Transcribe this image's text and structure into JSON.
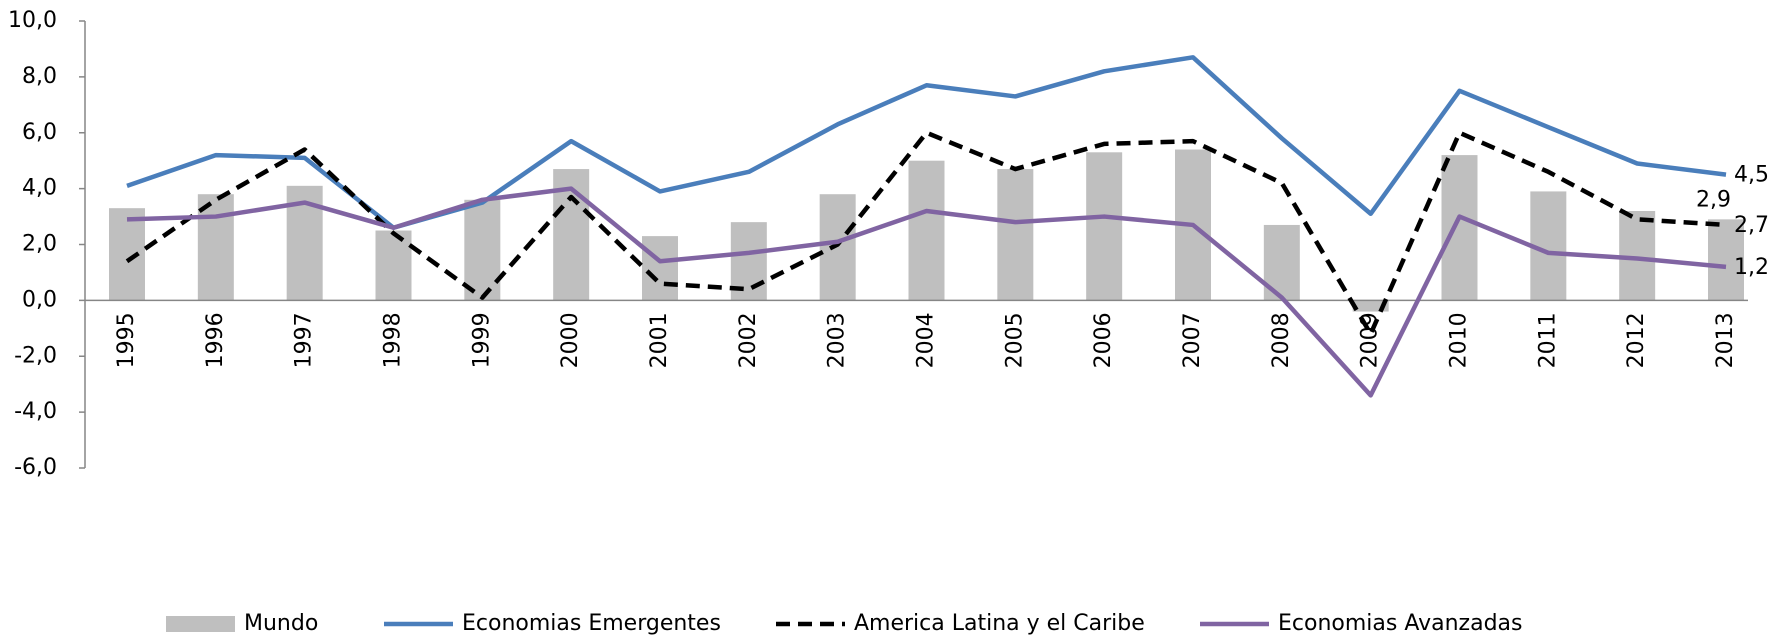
{
  "chart_data": {
    "type": "combo",
    "categories": [
      "1995",
      "1996",
      "1997",
      "1998",
      "1999",
      "2000",
      "2001",
      "2002",
      "2003",
      "2004",
      "2005",
      "2006",
      "2007",
      "2008",
      "2009",
      "2010",
      "2011",
      "2012",
      "2013"
    ],
    "series": [
      {
        "name": "Mundo",
        "type": "bar",
        "color": "#bfbfbf",
        "values": [
          3.3,
          3.8,
          4.1,
          2.5,
          3.6,
          4.7,
          2.3,
          2.8,
          3.8,
          5.0,
          4.7,
          5.3,
          5.4,
          2.7,
          -0.4,
          5.2,
          3.9,
          3.2,
          2.9
        ],
        "value_labels": [
          null,
          null,
          null,
          null,
          null,
          null,
          null,
          null,
          null,
          null,
          null,
          null,
          null,
          null,
          null,
          null,
          null,
          null,
          "2,9"
        ]
      },
      {
        "name": "Economias Emergentes",
        "type": "line",
        "color": "#4a7ebb",
        "values": [
          4.1,
          5.2,
          5.1,
          2.6,
          3.5,
          5.7,
          3.9,
          4.6,
          6.3,
          7.7,
          7.3,
          8.2,
          8.7,
          5.8,
          3.1,
          7.5,
          6.2,
          4.9,
          4.5
        ],
        "value_labels": [
          null,
          null,
          null,
          null,
          null,
          null,
          null,
          null,
          null,
          null,
          null,
          null,
          null,
          null,
          null,
          null,
          null,
          null,
          "4,5"
        ]
      },
      {
        "name": "America Latina y el Caribe",
        "type": "line",
        "dashed": true,
        "color": "#000000",
        "values": [
          1.4,
          3.6,
          5.4,
          2.4,
          0.1,
          3.7,
          0.6,
          0.4,
          2.0,
          6.0,
          4.7,
          5.6,
          5.7,
          4.2,
          -1.2,
          6.0,
          4.6,
          2.9,
          2.7
        ],
        "value_labels": [
          null,
          null,
          null,
          null,
          null,
          null,
          null,
          null,
          null,
          null,
          null,
          null,
          null,
          null,
          null,
          null,
          null,
          null,
          "2,7"
        ]
      },
      {
        "name": "Economias Avanzadas",
        "type": "line",
        "color": "#8064a2",
        "values": [
          2.9,
          3.0,
          3.5,
          2.6,
          3.6,
          4.0,
          1.4,
          1.7,
          2.1,
          3.2,
          2.8,
          3.0,
          2.7,
          0.1,
          -3.4,
          3.0,
          1.7,
          1.5,
          1.2
        ],
        "value_labels": [
          null,
          null,
          null,
          null,
          null,
          null,
          null,
          null,
          null,
          null,
          null,
          null,
          null,
          null,
          null,
          null,
          null,
          null,
          "1,2"
        ]
      }
    ],
    "ylim": [
      -6,
      10
    ],
    "yticks": [
      {
        "value": -6,
        "label": "-6,0"
      },
      {
        "value": -4,
        "label": "-4,0"
      },
      {
        "value": -2,
        "label": "-2,0"
      },
      {
        "value": 0,
        "label": "0,0"
      },
      {
        "value": 2,
        "label": "2,0"
      },
      {
        "value": 4,
        "label": "4,0"
      },
      {
        "value": 6,
        "label": "6,0"
      },
      {
        "value": 8,
        "label": "8,0"
      },
      {
        "value": 10,
        "label": "10,0"
      }
    ],
    "legend": "bottom"
  }
}
